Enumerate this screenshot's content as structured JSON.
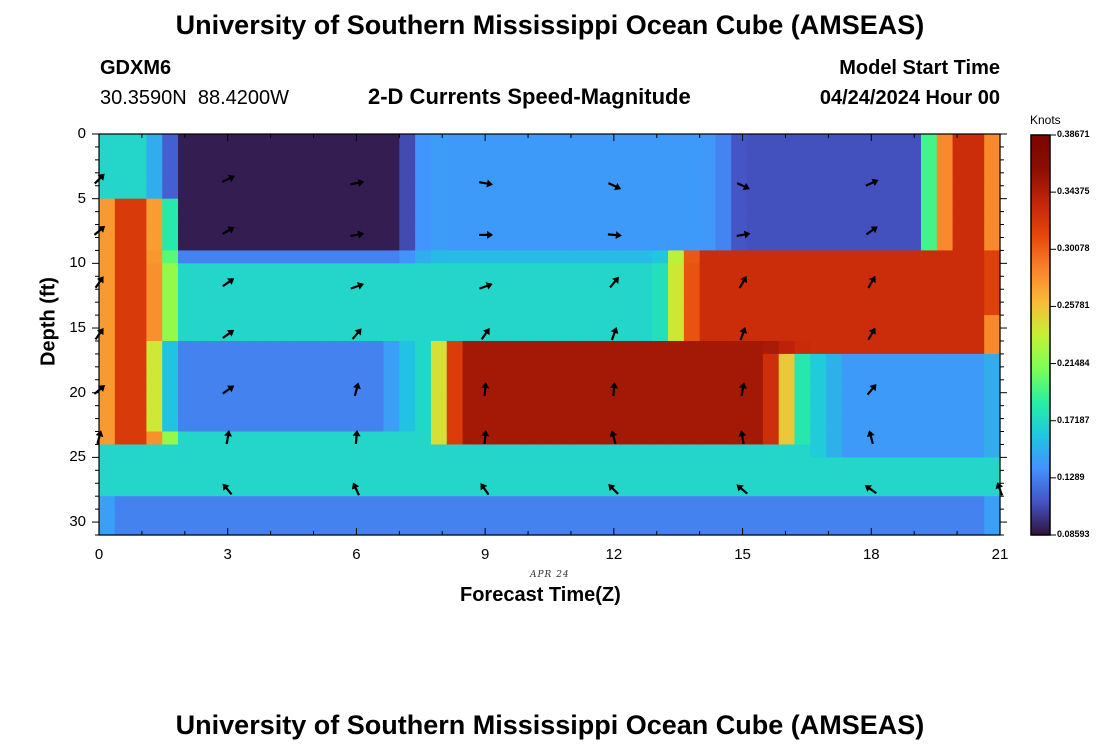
{
  "header": {
    "title": "University of Southern Mississippi Ocean Cube (AMSEAS)",
    "station_id": "GDXM6",
    "lat": "30.3590N",
    "lon": "88.4200W",
    "plot_title": "2-D Currents Speed-Magnitude",
    "model_start_label": "Model Start Time",
    "model_start_value": "04/24/2024 Hour 00",
    "footer_title": "University of Southern Mississippi Ocean Cube (AMSEAS)"
  },
  "chart_data": {
    "type": "heatmap",
    "title": "2-D Currents Speed-Magnitude",
    "xlabel": "Forecast Time(Z)",
    "ylabel": "Depth (ft)",
    "x_date_label": "APR 24",
    "xlim": [
      0,
      21
    ],
    "ylim": [
      0,
      31
    ],
    "y_inverted": true,
    "x_ticks": [
      0,
      3,
      6,
      9,
      12,
      15,
      18,
      21
    ],
    "y_ticks": [
      0,
      5,
      10,
      15,
      20,
      25,
      30
    ],
    "colorbar": {
      "units": "Knots",
      "min": 0.0859,
      "max": 0.3867,
      "ticks": [
        "0.08593",
        "0.1289",
        "0.17187",
        "0.21484",
        "0.25781",
        "0.30078",
        "0.34375",
        "0.38671"
      ],
      "colors": [
        "#30123b",
        "#4454c4",
        "#4491fe",
        "#1fc8de",
        "#29efa2",
        "#7efe55",
        "#c5f034",
        "#f9ba38",
        "#f9822a",
        "#e4460a",
        "#c2240a",
        "#8a0f02",
        "#7a0403"
      ]
    },
    "regions": [
      {
        "name": "background",
        "speed": 0.17
      },
      {
        "name": "surface-low-left",
        "time": [
          1.5,
          7.5
        ],
        "depth": [
          0,
          9.5
        ],
        "speed": 0.09
      },
      {
        "name": "surface-mid",
        "time": [
          7.5,
          14.5
        ],
        "depth": [
          0,
          9.5
        ],
        "speed": 0.14
      },
      {
        "name": "surface-low-right",
        "time": [
          14.5,
          19.5
        ],
        "depth": [
          0,
          9.5
        ],
        "speed": 0.11
      },
      {
        "name": "right-high-column",
        "time": [
          19.5,
          21
        ],
        "depth": [
          0,
          14
        ],
        "speed": 0.33
      },
      {
        "name": "left-high-band",
        "time": [
          0,
          1.5
        ],
        "depth": [
          5,
          24
        ],
        "speed": 0.32
      },
      {
        "name": "mid-depth-high-right",
        "time": [
          13.5,
          21
        ],
        "depth": [
          9,
          17
        ],
        "speed": 0.33
      },
      {
        "name": "mid-depth-pocket-low",
        "time": [
          1.5,
          7
        ],
        "depth": [
          16,
          23
        ],
        "speed": 0.13
      },
      {
        "name": "deep-high-core",
        "time": [
          8,
          16
        ],
        "depth": [
          16,
          24
        ],
        "speed": 0.35
      },
      {
        "name": "deep-right-low",
        "time": [
          17,
          21
        ],
        "depth": [
          17,
          25
        ],
        "speed": 0.14
      },
      {
        "name": "bottom-low",
        "time": [
          0,
          21
        ],
        "depth": [
          28,
          31
        ],
        "speed": 0.13
      }
    ],
    "vectors_note": "current direction arrows at 3-hour intervals and ~4 ft depth spacing",
    "vectors": [
      {
        "t": 0,
        "d": 3.5,
        "dir": 45
      },
      {
        "t": 3,
        "d": 3.5,
        "dir": 65
      },
      {
        "t": 6,
        "d": 3.8,
        "dir": 80
      },
      {
        "t": 9,
        "d": 3.8,
        "dir": 100
      },
      {
        "t": 12,
        "d": 4.0,
        "dir": 115
      },
      {
        "t": 15,
        "d": 4.0,
        "dir": 115
      },
      {
        "t": 18,
        "d": 3.8,
        "dir": 65
      },
      {
        "t": 0,
        "d": 7.5,
        "dir": 50
      },
      {
        "t": 3,
        "d": 7.5,
        "dir": 60
      },
      {
        "t": 6,
        "d": 7.8,
        "dir": 80
      },
      {
        "t": 9,
        "d": 7.8,
        "dir": 90
      },
      {
        "t": 12,
        "d": 7.8,
        "dir": 95
      },
      {
        "t": 15,
        "d": 7.8,
        "dir": 80
      },
      {
        "t": 18,
        "d": 7.5,
        "dir": 55
      },
      {
        "t": 0,
        "d": 11.5,
        "dir": 35
      },
      {
        "t": 3,
        "d": 11.5,
        "dir": 55
      },
      {
        "t": 6,
        "d": 11.8,
        "dir": 70
      },
      {
        "t": 9,
        "d": 11.8,
        "dir": 70
      },
      {
        "t": 12,
        "d": 11.5,
        "dir": 40
      },
      {
        "t": 15,
        "d": 11.5,
        "dir": 30
      },
      {
        "t": 18,
        "d": 11.5,
        "dir": 30
      },
      {
        "t": 0,
        "d": 15.5,
        "dir": 35
      },
      {
        "t": 3,
        "d": 15.5,
        "dir": 55
      },
      {
        "t": 6,
        "d": 15.5,
        "dir": 40
      },
      {
        "t": 9,
        "d": 15.5,
        "dir": 35
      },
      {
        "t": 12,
        "d": 15.5,
        "dir": 20
      },
      {
        "t": 15,
        "d": 15.5,
        "dir": 20
      },
      {
        "t": 18,
        "d": 15.5,
        "dir": 30
      },
      {
        "t": 0,
        "d": 19.8,
        "dir": 50
      },
      {
        "t": 3,
        "d": 19.8,
        "dir": 55
      },
      {
        "t": 6,
        "d": 19.8,
        "dir": 15
      },
      {
        "t": 9,
        "d": 19.8,
        "dir": 5
      },
      {
        "t": 12,
        "d": 19.8,
        "dir": 5
      },
      {
        "t": 15,
        "d": 19.8,
        "dir": 10
      },
      {
        "t": 18,
        "d": 19.8,
        "dir": 40
      },
      {
        "t": 0,
        "d": 23.5,
        "dir": 15
      },
      {
        "t": 3,
        "d": 23.5,
        "dir": 10
      },
      {
        "t": 6,
        "d": 23.5,
        "dir": 5
      },
      {
        "t": 9,
        "d": 23.5,
        "dir": 5
      },
      {
        "t": 12,
        "d": 23.5,
        "dir": 345
      },
      {
        "t": 15,
        "d": 23.5,
        "dir": 350
      },
      {
        "t": 18,
        "d": 23.5,
        "dir": 345
      },
      {
        "t": 3,
        "d": 27.5,
        "dir": 320
      },
      {
        "t": 6,
        "d": 27.5,
        "dir": 335
      },
      {
        "t": 9,
        "d": 27.5,
        "dir": 325
      },
      {
        "t": 12,
        "d": 27.5,
        "dir": 315
      },
      {
        "t": 15,
        "d": 27.5,
        "dir": 310
      },
      {
        "t": 18,
        "d": 27.5,
        "dir": 305
      },
      {
        "t": 21,
        "d": 27.5,
        "dir": 340
      }
    ]
  }
}
